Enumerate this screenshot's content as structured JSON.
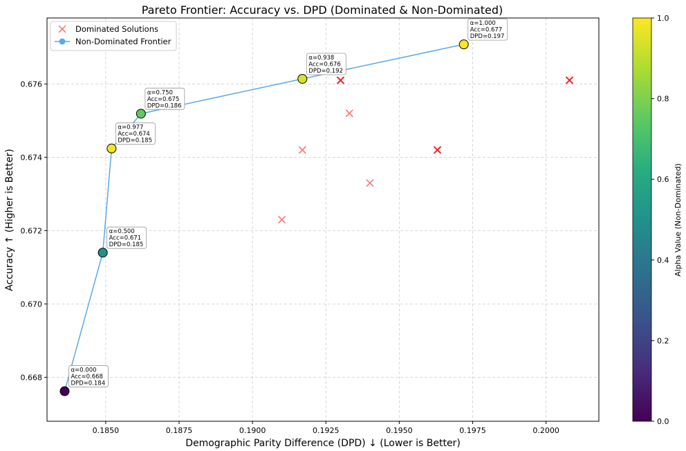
{
  "chart_data": {
    "type": "scatter",
    "title": "Pareto Frontier: Accuracy vs. DPD (Dominated & Non-Dominated)",
    "xlabel": "Demographic Parity Difference (DPD) ↓ (Lower is Better)",
    "ylabel": "Accuracy ↑ (Higher is Better)",
    "xlim": [
      0.183,
      0.2018
    ],
    "ylim": [
      0.6668,
      0.6778
    ],
    "xticks": [
      0.185,
      0.1875,
      0.19,
      0.1925,
      0.195,
      0.1975,
      0.2
    ],
    "xtick_labels": [
      "0.1850",
      "0.1875",
      "0.1900",
      "0.1925",
      "0.1950",
      "0.1975",
      "0.2000"
    ],
    "yticks": [
      0.668,
      0.67,
      0.672,
      0.674,
      0.676
    ],
    "ytick_labels": [
      "0.668",
      "0.670",
      "0.672",
      "0.674",
      "0.676"
    ],
    "grid": true,
    "legend_position": "top-left",
    "legend": [
      {
        "label": "Dominated Solutions",
        "marker": "x",
        "color": "#ff6b6b"
      },
      {
        "label": "Non-Dominated Frontier",
        "marker": "line-dot",
        "color": "#5aa9e6"
      }
    ],
    "series": [
      {
        "name": "Dominated Solutions",
        "marker": "x",
        "color": "#ff6b6b",
        "x": [
          0.191,
          0.1917,
          0.193,
          0.1933,
          0.194,
          0.1963,
          0.2008
        ],
        "y": [
          0.6723,
          0.6742,
          0.6761,
          0.6752,
          0.6733,
          0.6742,
          0.6761
        ]
      },
      {
        "name": "Non-Dominated Frontier",
        "marker": "o",
        "line_color": "#5aa9e6",
        "x": [
          0.1836,
          0.1849,
          0.1852,
          0.1862,
          0.1917,
          0.1972
        ],
        "y": [
          0.66762,
          0.6714,
          0.67424,
          0.67519,
          0.67614,
          0.67708
        ],
        "alpha": [
          0.0,
          0.5,
          0.977,
          0.75,
          0.938,
          1.0
        ],
        "annotations": [
          [
            "α=0.000",
            "Acc=0.668",
            "DPD=0.184"
          ],
          [
            "α=0.500",
            "Acc=0.671",
            "DPD=0.185"
          ],
          [
            "α=0.977",
            "Acc=0.674",
            "DPD=0.185"
          ],
          [
            "α=0.750",
            "Acc=0.675",
            "DPD=0.186"
          ],
          [
            "α=0.938",
            "Acc=0.676",
            "DPD=0.192"
          ],
          [
            "α=1.000",
            "Acc=0.677",
            "DPD=0.197"
          ]
        ]
      }
    ],
    "dominated_bold_indices": [
      2,
      5,
      6
    ],
    "colorbar": {
      "label": "Alpha Value (Non-Dominated)",
      "colormap": "viridis",
      "range": [
        0.0,
        1.0
      ],
      "ticks": [
        0.0,
        0.2,
        0.4,
        0.6,
        0.8,
        1.0
      ],
      "tick_labels": [
        "0.0",
        "0.2",
        "0.4",
        "0.6",
        "0.8",
        "1.0"
      ]
    }
  }
}
